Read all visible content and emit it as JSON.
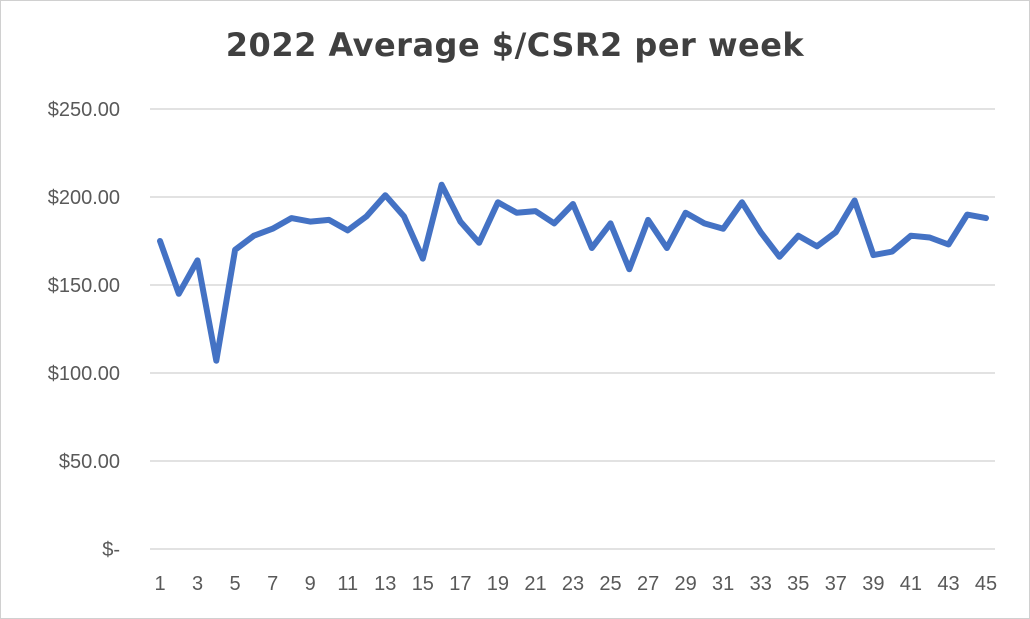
{
  "chart_data": {
    "type": "line",
    "title": "2022 Average $/CSR2 per week",
    "xlabel": "",
    "ylabel": "",
    "ylim": [
      0,
      250
    ],
    "y_ticks": [
      0,
      50,
      100,
      150,
      200,
      250
    ],
    "y_tick_labels": [
      "$-",
      "$50.00",
      "$100.00",
      "$150.00",
      "$200.00",
      "$250.00"
    ],
    "x_tick_labels": [
      "1",
      "3",
      "5",
      "7",
      "9",
      "11",
      "13",
      "15",
      "17",
      "19",
      "21",
      "23",
      "25",
      "27",
      "29",
      "31",
      "33",
      "35",
      "37",
      "39",
      "41",
      "43",
      "45"
    ],
    "grid": true,
    "legend": "none",
    "x": [
      1,
      2,
      3,
      4,
      5,
      6,
      7,
      8,
      9,
      10,
      11,
      12,
      13,
      14,
      15,
      16,
      17,
      18,
      19,
      20,
      21,
      22,
      23,
      24,
      25,
      26,
      27,
      28,
      29,
      30,
      31,
      32,
      33,
      34,
      35,
      36,
      37,
      38,
      39,
      40,
      41,
      42,
      43,
      44,
      45
    ],
    "series": [
      {
        "color": "#4472C4",
        "values": [
          175,
          145,
          164,
          107,
          170,
          178,
          182,
          188,
          186,
          187,
          181,
          189,
          201,
          189,
          165,
          207,
          186,
          174,
          197,
          191,
          192,
          185,
          196,
          171,
          185,
          159,
          187,
          171,
          191,
          185,
          182,
          197,
          180,
          166,
          178,
          172,
          180,
          198,
          167,
          169,
          178,
          177,
          173,
          190,
          188
        ]
      }
    ]
  }
}
